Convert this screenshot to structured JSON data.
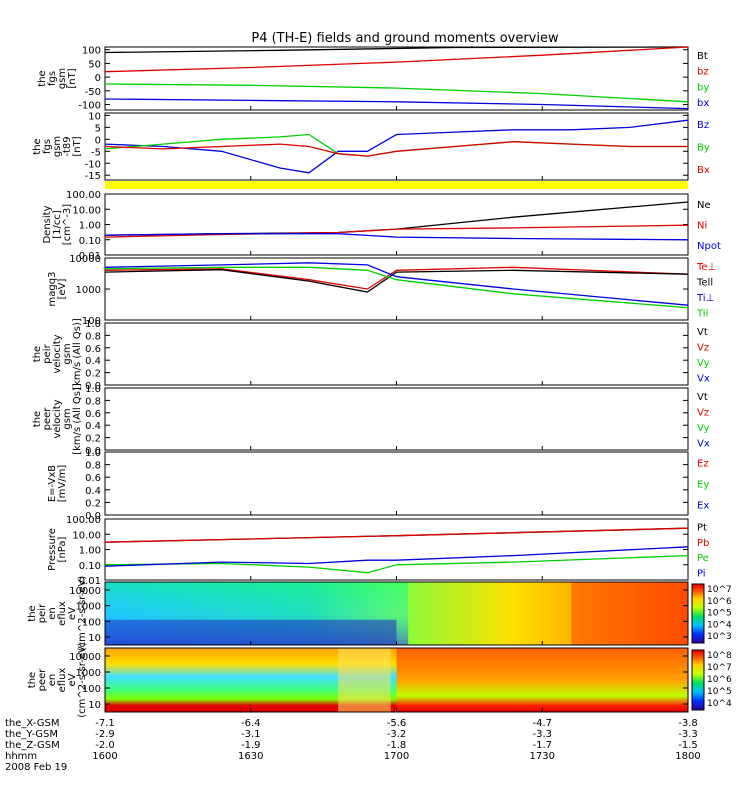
{
  "title": "P4 (TH-E) fields and ground moments overview",
  "colors": {
    "black": "#000000",
    "red": "#e00000",
    "green": "#00d000",
    "blue": "#0000e0",
    "yellow": "#ffff00"
  },
  "x_axis": {
    "ticks": [
      "1600",
      "1630",
      "1700",
      "1730",
      "1800"
    ],
    "rows": [
      {
        "label": "the_X-GSM",
        "values": [
          "-7.1",
          "-6.4",
          "-5.6",
          "-4.7",
          "-3.8"
        ]
      },
      {
        "label": "the_Y-GSM",
        "values": [
          "-2.9",
          "-3.1",
          "-3.2",
          "-3.3",
          "-3.3"
        ]
      },
      {
        "label": "the_Z-GSM",
        "values": [
          "-2.0",
          "-1.9",
          "-1.8",
          "-1.7",
          "-1.5"
        ]
      },
      {
        "label": "hhmm",
        "values": []
      }
    ],
    "date": "2008 Feb 19"
  },
  "chart_data": [
    {
      "type": "line",
      "id": "fgs",
      "ylabel": [
        "the",
        "fgs",
        "gsm",
        "[nT]"
      ],
      "yticks": [
        "100",
        "50",
        "0",
        "-50",
        "-100"
      ],
      "ylim": [
        -120,
        110
      ],
      "series": [
        {
          "name": "Bt",
          "color": "black",
          "x": [
            0,
            0.3,
            0.6,
            1
          ],
          "y": [
            90,
            98,
            108,
            118
          ]
        },
        {
          "name": "bz",
          "color": "red",
          "x": [
            0,
            0.25,
            0.5,
            0.75,
            1
          ],
          "y": [
            20,
            35,
            55,
            80,
            110
          ]
        },
        {
          "name": "by",
          "color": "green",
          "x": [
            0,
            0.25,
            0.5,
            0.75,
            1
          ],
          "y": [
            -25,
            -30,
            -40,
            -60,
            -90
          ]
        },
        {
          "name": "bx",
          "color": "blue",
          "x": [
            0,
            0.25,
            0.5,
            0.75,
            1
          ],
          "y": [
            -80,
            -85,
            -90,
            -100,
            -115
          ]
        }
      ]
    },
    {
      "type": "line",
      "id": "fgs_dsl",
      "ylabel": [
        "the",
        "fgs",
        "gsm",
        "-t89",
        "[nT]"
      ],
      "yticks": [
        "10",
        "5",
        "0",
        "-5",
        "-10",
        "-15"
      ],
      "ylim": [
        -17,
        11
      ],
      "series": [
        {
          "name": "Bz",
          "color": "blue",
          "x": [
            0,
            0.1,
            0.2,
            0.3,
            0.35,
            0.4,
            0.45,
            0.5,
            0.6,
            0.7,
            0.8,
            0.9,
            1
          ],
          "y": [
            -2,
            -3,
            -5,
            -12,
            -14,
            -5,
            -5,
            2,
            3,
            4,
            4,
            5,
            8
          ]
        },
        {
          "name": "By",
          "color": "green",
          "x": [
            0,
            0.1,
            0.2,
            0.3,
            0.35,
            0.4,
            0.45,
            0.5,
            0.6,
            0.7,
            0.8,
            0.9,
            1
          ],
          "y": [
            -4,
            -2,
            0,
            1,
            2,
            -6,
            -7,
            -5,
            -3,
            -1,
            -2,
            -3,
            -3
          ]
        },
        {
          "name": "Bx",
          "color": "red",
          "x": [
            0,
            0.1,
            0.2,
            0.3,
            0.35,
            0.4,
            0.45,
            0.5,
            0.6,
            0.7,
            0.8,
            0.9,
            1
          ],
          "y": [
            -3,
            -4,
            -3,
            -2,
            -3,
            -6,
            -7,
            -5,
            -3,
            -1,
            -2,
            -3,
            -3
          ]
        }
      ]
    },
    {
      "type": "bar",
      "id": "flag",
      "color": "yellow"
    },
    {
      "type": "line",
      "id": "density",
      "log": true,
      "ylabel": [
        "Density",
        "[1/cc]",
        "[cm^-3]"
      ],
      "yticks": [
        "100.00",
        "10.00",
        "1.00",
        "0.10",
        "0.01"
      ],
      "ylim": [
        0.01,
        100
      ],
      "series": [
        {
          "name": "Ne",
          "color": "black",
          "x": [
            0,
            0.2,
            0.4,
            0.5,
            0.7,
            1
          ],
          "y": [
            0.2,
            0.25,
            0.3,
            0.5,
            3,
            30
          ]
        },
        {
          "name": "Ni",
          "color": "red",
          "x": [
            0,
            0.2,
            0.4,
            0.5,
            0.7,
            1
          ],
          "y": [
            0.15,
            0.22,
            0.3,
            0.5,
            0.6,
            0.9
          ]
        },
        {
          "name": "Npot",
          "color": "blue",
          "x": [
            0,
            0.2,
            0.4,
            0.5,
            0.7,
            1
          ],
          "y": [
            0.2,
            0.25,
            0.25,
            0.15,
            0.12,
            0.1
          ]
        }
      ]
    },
    {
      "type": "line",
      "id": "temperature",
      "log": true,
      "ylabel": [
        "magq3",
        "[eV]"
      ],
      "yticks": [
        "10000",
        "1000",
        "100"
      ],
      "ylim": [
        100,
        10000
      ],
      "series": [
        {
          "name": "Te⊥",
          "color": "red",
          "x": [
            0,
            0.2,
            0.35,
            0.45,
            0.5,
            0.7,
            1
          ],
          "y": [
            4000,
            4500,
            2000,
            1000,
            4000,
            5000,
            3000
          ]
        },
        {
          "name": "Tell",
          "color": "black",
          "x": [
            0,
            0.2,
            0.35,
            0.45,
            0.5,
            0.7,
            1
          ],
          "y": [
            3500,
            4200,
            1800,
            800,
            3500,
            4000,
            3000
          ]
        },
        {
          "name": "Ti⊥",
          "color": "blue",
          "x": [
            0,
            0.2,
            0.35,
            0.45,
            0.5,
            0.7,
            1
          ],
          "y": [
            5000,
            6000,
            7000,
            6000,
            2500,
            1000,
            300
          ]
        },
        {
          "name": "Til",
          "color": "green",
          "x": [
            0,
            0.2,
            0.35,
            0.45,
            0.5,
            0.7,
            1
          ],
          "y": [
            4500,
            5000,
            5000,
            4000,
            2000,
            700,
            250
          ]
        }
      ]
    },
    {
      "type": "line",
      "id": "peir_velocity",
      "ylabel": [
        "the",
        "peir",
        "velocity",
        "gsm",
        "[km/s (All Qs)]"
      ],
      "yticks": [
        "1.0",
        "0.8",
        "0.6",
        "0.4",
        "0.2",
        "0.0"
      ],
      "ylim": [
        0,
        1
      ],
      "series": [
        {
          "name": "Vt",
          "color": "black",
          "x": [],
          "y": []
        },
        {
          "name": "Vz",
          "color": "red",
          "x": [],
          "y": []
        },
        {
          "name": "Vy",
          "color": "green",
          "x": [],
          "y": []
        },
        {
          "name": "Vx",
          "color": "blue",
          "x": [],
          "y": []
        }
      ]
    },
    {
      "type": "line",
      "id": "peer_velocity",
      "ylabel": [
        "the",
        "peer",
        "velocity",
        "gsm",
        "[km/s (All Qs)]"
      ],
      "yticks": [
        "1.0",
        "0.8",
        "0.6",
        "0.4",
        "0.2",
        "0.0"
      ],
      "ylim": [
        0,
        1
      ],
      "series": [
        {
          "name": "Vt",
          "color": "black",
          "x": [],
          "y": []
        },
        {
          "name": "Vz",
          "color": "red",
          "x": [],
          "y": []
        },
        {
          "name": "Vy",
          "color": "green",
          "x": [],
          "y": []
        },
        {
          "name": "Vx",
          "color": "blue",
          "x": [],
          "y": []
        }
      ]
    },
    {
      "type": "line",
      "id": "efield",
      "ylabel": [
        "E=-VxB",
        "[mV/m]"
      ],
      "yticks": [
        "1.0",
        "0.8",
        "0.6",
        "0.4",
        "0.2",
        "0.0"
      ],
      "ylim": [
        0,
        1
      ],
      "series": [
        {
          "name": "Ez",
          "color": "red",
          "x": [],
          "y": []
        },
        {
          "name": "Ey",
          "color": "green",
          "x": [],
          "y": []
        },
        {
          "name": "Ex",
          "color": "blue",
          "x": [],
          "y": []
        }
      ]
    },
    {
      "type": "line",
      "id": "pressure",
      "log": true,
      "ylabel": [
        "Pressure",
        "[nPa]"
      ],
      "yticks": [
        "100.00",
        "10.00",
        "1.00",
        "0.10",
        "0.01"
      ],
      "ylim": [
        0.01,
        100
      ],
      "series": [
        {
          "name": "Pt",
          "color": "black",
          "x": [
            0,
            0.5,
            1
          ],
          "y": [
            3,
            8,
            25
          ]
        },
        {
          "name": "Pb",
          "color": "red",
          "x": [
            0,
            0.5,
            1
          ],
          "y": [
            3,
            8,
            25
          ]
        },
        {
          "name": "Pe",
          "color": "green",
          "x": [
            0,
            0.2,
            0.35,
            0.45,
            0.5,
            0.7,
            1
          ],
          "y": [
            0.1,
            0.12,
            0.07,
            0.03,
            0.1,
            0.15,
            0.4
          ]
        },
        {
          "name": "Pi",
          "color": "blue",
          "x": [
            0,
            0.2,
            0.35,
            0.45,
            0.5,
            0.7,
            1
          ],
          "y": [
            0.08,
            0.15,
            0.12,
            0.2,
            0.2,
            0.4,
            1.5
          ]
        }
      ]
    },
    {
      "type": "heatmap",
      "id": "peir_eflux",
      "ylabel": [
        "the",
        "peir",
        "en",
        "eflux",
        "eV",
        "(cm^2-s-sr-eV)"
      ],
      "yticks": [
        "10000",
        "1000",
        "100",
        "10"
      ],
      "colorbar_ticks": [
        "10^7",
        "10^6",
        "10^5",
        "10^4",
        "10^3"
      ]
    },
    {
      "type": "heatmap",
      "id": "peer_eflux",
      "ylabel": [
        "the",
        "peer",
        "en",
        "eflux",
        "eV",
        "(cm^2-s-sr-eV)"
      ],
      "yticks": [
        "10000",
        "1000",
        "100",
        "10"
      ],
      "colorbar_ticks": [
        "10^8",
        "10^7",
        "10^6",
        "10^5",
        "10^4"
      ]
    }
  ]
}
